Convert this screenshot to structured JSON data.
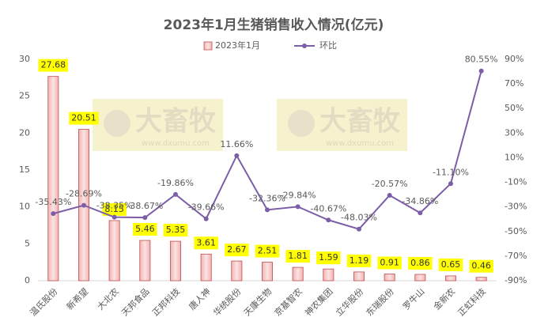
{
  "chart_data": {
    "type": "bar",
    "title": "2023年1月生猪销售收入情况(亿元)",
    "categories": [
      "温氏股份",
      "新希望",
      "大北农",
      "天邦食品",
      "正邦科技",
      "唐人神",
      "华统股份",
      "天康生物",
      "京基智农",
      "神农集团",
      "立华股份",
      "东瑞股份",
      "罗牛山",
      "金新农",
      "正虹科技"
    ],
    "series": [
      {
        "name": "2023年1月",
        "type": "bar",
        "color": "#c0504d",
        "values": [
          27.68,
          20.51,
          8.15,
          5.46,
          5.35,
          3.61,
          2.67,
          2.51,
          1.81,
          1.59,
          1.19,
          0.91,
          0.86,
          0.65,
          0.46
        ]
      },
      {
        "name": "环比",
        "type": "line",
        "axis": "y2",
        "color": "#7b5ea7",
        "values": [
          -35.43,
          -28.69,
          -38.35,
          -38.67,
          -19.86,
          -39.66,
          11.66,
          -32.36,
          -29.84,
          -40.67,
          -48.03,
          -20.57,
          -34.86,
          -11.1,
          80.55
        ],
        "value_labels": [
          "-35.43%",
          "-28.69%",
          "-38.35%",
          "-38.67%",
          "-19.86%",
          "-39.66%",
          "11.66%",
          "-32.36%",
          "-29.84%",
          "-40.67%",
          "-48.03%",
          "-20.57%",
          "-34.86%",
          "-11.10%",
          "80.55%"
        ]
      }
    ],
    "ylim": [
      0,
      30
    ],
    "yticks": [
      0,
      5,
      10,
      15,
      20,
      25,
      30
    ],
    "y2lim": [
      -90,
      90
    ],
    "y2ticks": [
      {
        "value": -90,
        "label": "-90%"
      },
      {
        "value": -70,
        "label": "-70%"
      },
      {
        "value": -50,
        "label": "-50%"
      },
      {
        "value": -30,
        "label": "-30%"
      },
      {
        "value": -10,
        "label": "-10%"
      },
      {
        "value": 10,
        "label": "10%"
      },
      {
        "value": 30,
        "label": "30%"
      },
      {
        "value": 50,
        "label": "50%"
      },
      {
        "value": 70,
        "label": "70%"
      },
      {
        "value": 90,
        "label": "90%"
      }
    ],
    "grid": false,
    "legend": "top",
    "watermark": {
      "brand": "大畜牧",
      "url": "www.dxumu.com"
    }
  }
}
